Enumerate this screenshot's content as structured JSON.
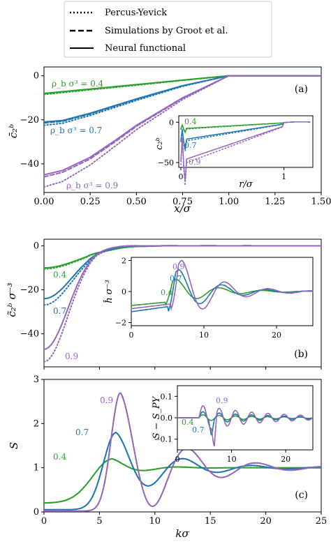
{
  "legend": {
    "entries": [
      {
        "label": "Percus-Yevick",
        "style": "dotted"
      },
      {
        "label": "Simulations by Groot et al.",
        "style": "dashed"
      },
      {
        "label": "Neural functional",
        "style": "solid"
      }
    ]
  },
  "colors": {
    "0.4": "#2ca02c",
    "0.7": "#1f77b4",
    "0.9": "#9467bd"
  },
  "chart_data": [
    {
      "type": "line",
      "panel_label": "(a)",
      "xlabel": "x/σ",
      "ylabel": "c̄₂ᵇ",
      "xlim": [
        0,
        1.5
      ],
      "ylim": [
        -53,
        4
      ],
      "xticks": [
        "0.00",
        "0.25",
        "0.50",
        "0.75",
        "1.00",
        "1.25",
        "1.50"
      ],
      "yticks": [
        "0",
        "−20",
        "−40"
      ],
      "annotations": [
        "ρ_b σ³ = 0.4",
        "ρ_b σ³ = 0.7",
        "ρ_b σ³ = 0.9"
      ],
      "series": [
        {
          "density": "0.4",
          "style": "solid",
          "x": [
            0,
            0.25,
            0.5,
            0.75,
            1.0,
            1.5
          ],
          "y": [
            -8.0,
            -6.0,
            -4.0,
            -2.0,
            0.0,
            0.0
          ]
        },
        {
          "density": "0.4",
          "style": "dotted",
          "x": [
            0,
            0.25,
            0.5,
            0.75,
            1.0,
            1.5
          ],
          "y": [
            -8.5,
            -6.4,
            -4.3,
            -2.1,
            0.0,
            0.0
          ]
        },
        {
          "density": "0.7",
          "style": "solid",
          "x": [
            0,
            0.1,
            0.25,
            0.5,
            0.75,
            1.0,
            1.5
          ],
          "y": [
            -21.0,
            -20.3,
            -17.0,
            -10.5,
            -4.5,
            0.0,
            0.0
          ]
        },
        {
          "density": "0.7",
          "style": "dotted",
          "x": [
            0,
            0.1,
            0.25,
            0.5,
            0.75,
            1.0,
            1.5
          ],
          "y": [
            -22.5,
            -21.6,
            -18.0,
            -11.2,
            -4.8,
            0.0,
            0.0
          ]
        },
        {
          "density": "0.9",
          "style": "solid",
          "x": [
            0,
            0.1,
            0.25,
            0.4,
            0.5,
            0.75,
            1.0,
            1.5
          ],
          "y": [
            -45.0,
            -43.0,
            -37.0,
            -28.5,
            -22.5,
            -10.0,
            0.0,
            0.0
          ]
        },
        {
          "density": "0.9",
          "style": "dotted",
          "x": [
            0,
            0.1,
            0.25,
            0.4,
            0.5,
            0.75,
            1.0,
            1.5
          ],
          "y": [
            -50.5,
            -48.0,
            -40.5,
            -31.0,
            -24.5,
            -10.8,
            0.0,
            0.0
          ]
        }
      ],
      "inset": {
        "xlabel": "r/σ",
        "ylabel": "c₂ᵇ",
        "xlim": [
          -0.02,
          1.28
        ],
        "ylim": [
          -56,
          8
        ],
        "xticks": [
          "0",
          "1"
        ],
        "yticks": [
          "0",
          "−50"
        ],
        "labels": [
          "0.4",
          "0.7",
          "0.9"
        ]
      }
    },
    {
      "type": "line",
      "panel_label": "(b)",
      "xlabel": "",
      "ylabel": "c̃₂ᵇ σ⁻³",
      "xlim": [
        0,
        25
      ],
      "ylim": [
        -55,
        3
      ],
      "xticks": [],
      "yticks": [
        "0",
        "−20",
        "−40"
      ],
      "labels": [
        "0.4",
        "0.7",
        "0.9"
      ],
      "inset": {
        "ylabel": "ĥ σ⁻³",
        "xlim": [
          0,
          25
        ],
        "ylim": [
          -2.2,
          2.2
        ],
        "xticks": [
          "0",
          "10",
          "20"
        ],
        "yticks": [
          "2",
          "0",
          "−2"
        ],
        "labels": [
          "0.9",
          "0.7",
          "0.4"
        ]
      }
    },
    {
      "type": "line",
      "panel_label": "(c)",
      "xlabel": "kσ",
      "ylabel": "S",
      "xlim": [
        0,
        25
      ],
      "ylim": [
        0,
        3
      ],
      "xticks": [
        "0",
        "5",
        "10",
        "15",
        "20",
        "25"
      ],
      "yticks": [
        "0",
        "1",
        "2",
        "3"
      ],
      "labels": [
        "0.9",
        "0.7",
        "0.4"
      ],
      "inset": {
        "ylabel": "S − S_PY",
        "xlim": [
          0,
          25
        ],
        "ylim": [
          -0.15,
          0.15
        ],
        "xticks": [
          "0",
          "10",
          "20"
        ],
        "yticks": [
          "0.1",
          "0.0",
          "−0.1"
        ],
        "labels": [
          "0.9",
          "0.4",
          "0.7"
        ]
      }
    }
  ]
}
